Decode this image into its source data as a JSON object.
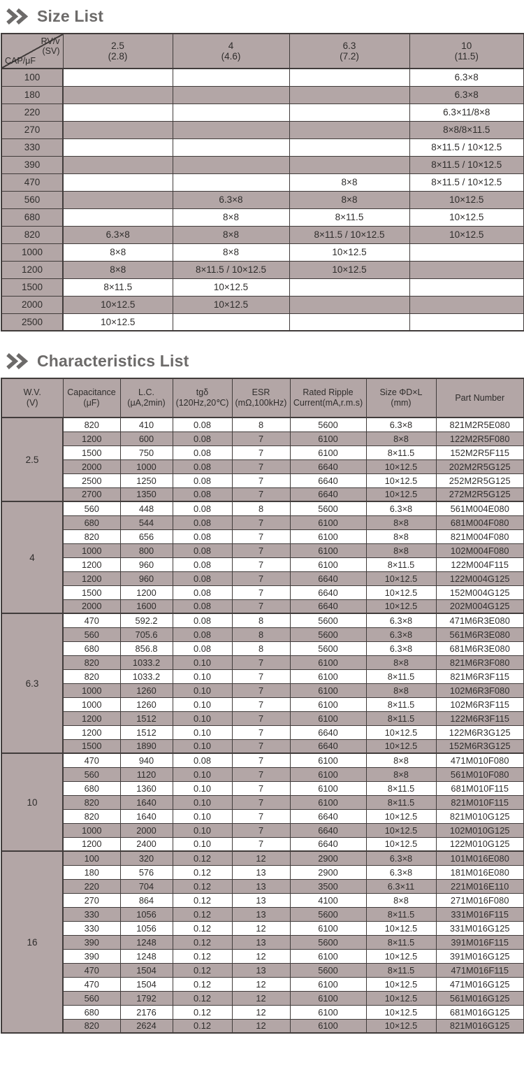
{
  "colors": {
    "stripe": "#b3a6a6",
    "border": "#413c3b",
    "title_gray": "#6c6a69"
  },
  "size_list": {
    "title": "Size List",
    "corner": {
      "top_line1": "RV/v",
      "top_line2": "(SV)",
      "bottom": "CAP/μF"
    },
    "columns": [
      {
        "main": "2.5",
        "sub": "(2.8)"
      },
      {
        "main": "4",
        "sub": "(4.6)"
      },
      {
        "main": "6.3",
        "sub": "(7.2)"
      },
      {
        "main": "10",
        "sub": "(11.5)"
      }
    ],
    "rows": [
      {
        "cap": "100",
        "cells": [
          "",
          "",
          "",
          "6.3×8"
        ]
      },
      {
        "cap": "180",
        "cells": [
          "",
          "",
          "",
          "6.3×8"
        ]
      },
      {
        "cap": "220",
        "cells": [
          "",
          "",
          "",
          "6.3×11/8×8"
        ]
      },
      {
        "cap": "270",
        "cells": [
          "",
          "",
          "",
          "8×8/8×11.5"
        ]
      },
      {
        "cap": "330",
        "cells": [
          "",
          "",
          "",
          "8×11.5 / 10×12.5"
        ]
      },
      {
        "cap": "390",
        "cells": [
          "",
          "",
          "",
          "8×11.5 / 10×12.5"
        ]
      },
      {
        "cap": "470",
        "cells": [
          "",
          "",
          "8×8",
          "8×11.5 / 10×12.5"
        ]
      },
      {
        "cap": "560",
        "cells": [
          "",
          "6.3×8",
          "8×8",
          "10×12.5"
        ]
      },
      {
        "cap": "680",
        "cells": [
          "",
          "8×8",
          "8×11.5",
          "10×12.5"
        ]
      },
      {
        "cap": "820",
        "cells": [
          "6.3×8",
          "8×8",
          "8×11.5 / 10×12.5",
          "10×12.5"
        ]
      },
      {
        "cap": "1000",
        "cells": [
          "8×8",
          "8×8",
          "10×12.5",
          ""
        ]
      },
      {
        "cap": "1200",
        "cells": [
          "8×8",
          "8×11.5 / 10×12.5",
          "10×12.5",
          ""
        ]
      },
      {
        "cap": "1500",
        "cells": [
          "8×11.5",
          "10×12.5",
          "",
          ""
        ]
      },
      {
        "cap": "2000",
        "cells": [
          "10×12.5",
          "10×12.5",
          "",
          ""
        ]
      },
      {
        "cap": "2500",
        "cells": [
          "10×12.5",
          "",
          "",
          ""
        ]
      }
    ]
  },
  "characteristics_list": {
    "title": "Characteristics List",
    "headers": [
      {
        "line1": "W.V.",
        "line2": "(V)"
      },
      {
        "line1": "Capacitance",
        "line2": "(μF)"
      },
      {
        "line1": "L.C.",
        "line2": "(μA,2min)"
      },
      {
        "line1": "tgδ",
        "line2": "(120Hz,20℃)"
      },
      {
        "line1": "ESR",
        "line2": "(mΩ,100kHz)"
      },
      {
        "line1": "Rated Ripple",
        "line2": "Current(mA,r.m.s)"
      },
      {
        "line1": "Size ΦD×L",
        "line2": "(mm)"
      },
      {
        "line1": "Part Number",
        "line2": ""
      }
    ],
    "groups": [
      {
        "wv": "2.5",
        "rows": [
          [
            "820",
            "410",
            "0.08",
            "8",
            "5600",
            "6.3×8",
            "821M2R5E080"
          ],
          [
            "1200",
            "600",
            "0.08",
            "7",
            "6100",
            "8×8",
            "122M2R5F080"
          ],
          [
            "1500",
            "750",
            "0.08",
            "7",
            "6100",
            "8×11.5",
            "152M2R5F115"
          ],
          [
            "2000",
            "1000",
            "0.08",
            "7",
            "6640",
            "10×12.5",
            "202M2R5G125"
          ],
          [
            "2500",
            "1250",
            "0.08",
            "7",
            "6640",
            "10×12.5",
            "252M2R5G125"
          ],
          [
            "2700",
            "1350",
            "0.08",
            "7",
            "6640",
            "10×12.5",
            "272M2R5G125"
          ]
        ]
      },
      {
        "wv": "4",
        "rows": [
          [
            "560",
            "448",
            "0.08",
            "8",
            "5600",
            "6.3×8",
            "561M004E080"
          ],
          [
            "680",
            "544",
            "0.08",
            "7",
            "6100",
            "8×8",
            "681M004F080"
          ],
          [
            "820",
            "656",
            "0.08",
            "7",
            "6100",
            "8×8",
            "821M004F080"
          ],
          [
            "1000",
            "800",
            "0.08",
            "7",
            "6100",
            "8×8",
            "102M004F080"
          ],
          [
            "1200",
            "960",
            "0.08",
            "7",
            "6100",
            "8×11.5",
            "122M004F115"
          ],
          [
            "1200",
            "960",
            "0.08",
            "7",
            "6640",
            "10×12.5",
            "122M004G125"
          ],
          [
            "1500",
            "1200",
            "0.08",
            "7",
            "6640",
            "10×12.5",
            "152M004G125"
          ],
          [
            "2000",
            "1600",
            "0.08",
            "7",
            "6640",
            "10×12.5",
            "202M004G125"
          ]
        ]
      },
      {
        "wv": "6.3",
        "rows": [
          [
            "470",
            "592.2",
            "0.08",
            "8",
            "5600",
            "6.3×8",
            "471M6R3E080"
          ],
          [
            "560",
            "705.6",
            "0.08",
            "8",
            "5600",
            "6.3×8",
            "561M6R3E080"
          ],
          [
            "680",
            "856.8",
            "0.08",
            "8",
            "5600",
            "6.3×8",
            "681M6R3E080"
          ],
          [
            "820",
            "1033.2",
            "0.10",
            "7",
            "6100",
            "8×8",
            "821M6R3F080"
          ],
          [
            "820",
            "1033.2",
            "0.10",
            "7",
            "6100",
            "8×11.5",
            "821M6R3F115"
          ],
          [
            "1000",
            "1260",
            "0.10",
            "7",
            "6100",
            "8×8",
            "102M6R3F080"
          ],
          [
            "1000",
            "1260",
            "0.10",
            "7",
            "6100",
            "8×11.5",
            "102M6R3F115"
          ],
          [
            "1200",
            "1512",
            "0.10",
            "7",
            "6100",
            "8×11.5",
            "122M6R3F115"
          ],
          [
            "1200",
            "1512",
            "0.10",
            "7",
            "6640",
            "10×12.5",
            "122M6R3G125"
          ],
          [
            "1500",
            "1890",
            "0.10",
            "7",
            "6640",
            "10×12.5",
            "152M6R3G125"
          ]
        ]
      },
      {
        "wv": "10",
        "rows": [
          [
            "470",
            "940",
            "0.08",
            "7",
            "6100",
            "8×8",
            "471M010F080"
          ],
          [
            "560",
            "1120",
            "0.10",
            "7",
            "6100",
            "8×8",
            "561M010F080"
          ],
          [
            "680",
            "1360",
            "0.10",
            "7",
            "6100",
            "8×11.5",
            "681M010F115"
          ],
          [
            "820",
            "1640",
            "0.10",
            "7",
            "6100",
            "8×11.5",
            "821M010F115"
          ],
          [
            "820",
            "1640",
            "0.10",
            "7",
            "6640",
            "10×12.5",
            "821M010G125"
          ],
          [
            "1000",
            "2000",
            "0.10",
            "7",
            "6640",
            "10×12.5",
            "102M010G125"
          ],
          [
            "1200",
            "2400",
            "0.10",
            "7",
            "6640",
            "10×12.5",
            "122M010G125"
          ]
        ]
      },
      {
        "wv": "16",
        "rows": [
          [
            "100",
            "320",
            "0.12",
            "12",
            "2900",
            "6.3×8",
            "101M016E080"
          ],
          [
            "180",
            "576",
            "0.12",
            "13",
            "2900",
            "6.3×8",
            "181M016E080"
          ],
          [
            "220",
            "704",
            "0.12",
            "13",
            "3500",
            "6.3×11",
            "221M016E110"
          ],
          [
            "270",
            "864",
            "0.12",
            "13",
            "4100",
            "8×8",
            "271M016F080"
          ],
          [
            "330",
            "1056",
            "0.12",
            "13",
            "5600",
            "8×11.5",
            "331M016F115"
          ],
          [
            "330",
            "1056",
            "0.12",
            "12",
            "6100",
            "10×12.5",
            "331M016G125"
          ],
          [
            "390",
            "1248",
            "0.12",
            "13",
            "5600",
            "8×11.5",
            "391M016F115"
          ],
          [
            "390",
            "1248",
            "0.12",
            "12",
            "6100",
            "10×12.5",
            "391M016G125"
          ],
          [
            "470",
            "1504",
            "0.12",
            "13",
            "5600",
            "8×11.5",
            "471M016F115"
          ],
          [
            "470",
            "1504",
            "0.12",
            "12",
            "6100",
            "10×12.5",
            "471M016G125"
          ],
          [
            "560",
            "1792",
            "0.12",
            "12",
            "6100",
            "10×12.5",
            "561M016G125"
          ],
          [
            "680",
            "2176",
            "0.12",
            "12",
            "6100",
            "10×12.5",
            "681M016G125"
          ],
          [
            "820",
            "2624",
            "0.12",
            "12",
            "6100",
            "10×12.5",
            "821M016G125"
          ]
        ]
      }
    ]
  }
}
